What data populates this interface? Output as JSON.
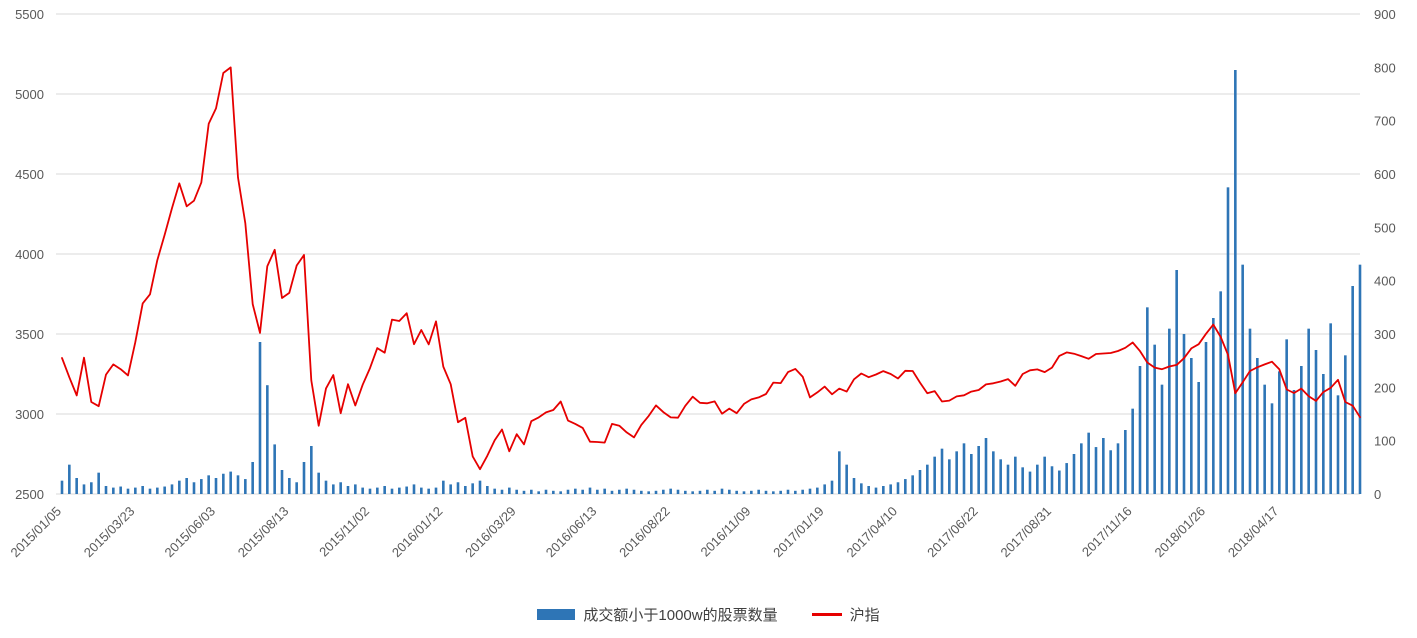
{
  "chart_data": {
    "type": "combo",
    "title": "",
    "grid": true,
    "legend_position": "bottom",
    "left_axis": {
      "min": 2500,
      "max": 5500,
      "step": 500,
      "ticks": [
        2500,
        3000,
        3500,
        4000,
        4500,
        5000,
        5500
      ]
    },
    "right_axis": {
      "min": 0,
      "max": 900,
      "step": 100,
      "ticks": [
        0,
        100,
        200,
        300,
        400,
        500,
        600,
        700,
        800,
        900
      ]
    },
    "x_tick_labels": [
      "2015/01/05",
      "2015/03/23",
      "2015/06/03",
      "2015/08/13",
      "2015/11/02",
      "2016/01/12",
      "2016/03/29",
      "2016/06/13",
      "2016/08/22",
      "2016/11/09",
      "2017/01/19",
      "2017/04/10",
      "2017/06/22",
      "2017/08/31",
      "2017/11/16",
      "2018/01/26",
      "2018/04/17"
    ],
    "x_tick_indices": [
      0,
      10,
      21,
      31,
      42,
      52,
      62,
      73,
      83,
      94,
      104,
      114,
      125,
      135,
      146,
      156,
      166
    ],
    "series": [
      {
        "name": "成交额小于1000w的股票数量",
        "type": "bar",
        "axis": "right",
        "color": "#2e75b6",
        "values": [
          25,
          55,
          30,
          18,
          22,
          40,
          15,
          12,
          14,
          10,
          12,
          15,
          10,
          12,
          14,
          18,
          25,
          30,
          22,
          28,
          35,
          30,
          38,
          42,
          35,
          28,
          60,
          285,
          204,
          93,
          45,
          30,
          22,
          60,
          90,
          40,
          25,
          18,
          22,
          15,
          18,
          12,
          10,
          12,
          15,
          10,
          12,
          14,
          18,
          12,
          10,
          12,
          25,
          18,
          22,
          15,
          20,
          25,
          15,
          10,
          8,
          12,
          8,
          6,
          8,
          5,
          8,
          6,
          5,
          8,
          10,
          8,
          12,
          8,
          10,
          6,
          8,
          10,
          8,
          6,
          5,
          6,
          8,
          10,
          8,
          6,
          5,
          6,
          8,
          6,
          10,
          8,
          6,
          5,
          6,
          8,
          6,
          5,
          6,
          8,
          6,
          8,
          10,
          12,
          18,
          25,
          80,
          55,
          30,
          20,
          15,
          12,
          15,
          18,
          22,
          28,
          35,
          45,
          55,
          70,
          85,
          65,
          80,
          95,
          75,
          90,
          105,
          80,
          65,
          55,
          70,
          50,
          42,
          55,
          70,
          52,
          44,
          58,
          75,
          95,
          115,
          88,
          105,
          82,
          95,
          120,
          160,
          240,
          350,
          280,
          205,
          310,
          420,
          300,
          255,
          210,
          285,
          330,
          380,
          575,
          795,
          430,
          310,
          255,
          205,
          170,
          230,
          290,
          195,
          240,
          310,
          270,
          225,
          320,
          185,
          260,
          390,
          430
        ]
      },
      {
        "name": "沪指",
        "type": "line",
        "axis": "left",
        "color": "#e60000",
        "values": [
          3350,
          3230,
          3116,
          3352,
          3075,
          3049,
          3246,
          3310,
          3280,
          3241,
          3449,
          3691,
          3748,
          3961,
          4121,
          4287,
          4441,
          4298,
          4333,
          4446,
          4814,
          4910,
          5131,
          5166,
          4478,
          4193,
          3687,
          3507,
          3924,
          4026,
          3725,
          3757,
          3928,
          3994,
          3210,
          2927,
          3160,
          3243,
          3005,
          3186,
          3053,
          3183,
          3287,
          3412,
          3383,
          3590,
          3581,
          3630,
          3436,
          3525,
          3435,
          3579,
          3296,
          3186,
          2949,
          2976,
          2735,
          2655,
          2739,
          2836,
          2903,
          2767,
          2874,
          2810,
          2955,
          2979,
          3010,
          3025,
          3078,
          2959,
          2938,
          2913,
          2827,
          2825,
          2821,
          2938,
          2927,
          2885,
          2854,
          2932,
          2988,
          3054,
          3012,
          2979,
          2977,
          3051,
          3108,
          3070,
          3067,
          3079,
          3002,
          3034,
          3005,
          3063,
          3091,
          3104,
          3125,
          3196,
          3193,
          3262,
          3282,
          3233,
          3104,
          3135,
          3171,
          3123,
          3159,
          3140,
          3217,
          3253,
          3230,
          3247,
          3268,
          3250,
          3222,
          3270,
          3269,
          3196,
          3130,
          3143,
          3078,
          3084,
          3110,
          3117,
          3140,
          3150,
          3185,
          3192,
          3203,
          3218,
          3176,
          3250,
          3273,
          3279,
          3262,
          3290,
          3363,
          3385,
          3377,
          3362,
          3345,
          3375,
          3378,
          3381,
          3394,
          3414,
          3447,
          3393,
          3322,
          3290,
          3280,
          3297,
          3307,
          3349,
          3410,
          3436,
          3501,
          3559,
          3481,
          3370,
          3130,
          3199,
          3269,
          3292,
          3310,
          3327,
          3280,
          3153,
          3131,
          3159,
          3111,
          3082,
          3137,
          3164,
          3214,
          3075,
          3052,
          2980
        ]
      }
    ]
  },
  "legend": {
    "bar_label": "成交额小于1000w的股票数量",
    "line_label": "沪指"
  },
  "colors": {
    "bar": "#2e75b6",
    "line": "#e60000",
    "grid": "#d9d9d9",
    "axis_text": "#595959"
  }
}
